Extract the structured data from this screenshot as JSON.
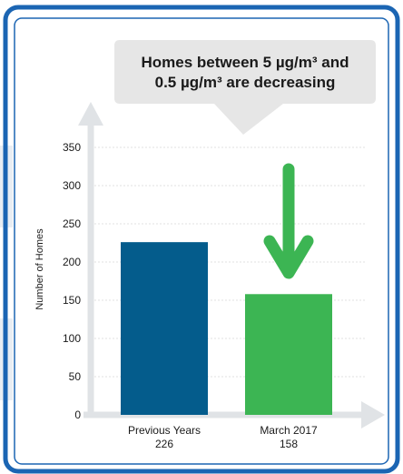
{
  "callout": {
    "line1": "Homes between 5 µg/m³ and",
    "line2": "0.5 µg/m³ are decreasing"
  },
  "colors": {
    "frame_blue": "#1b65b3",
    "bar_previous": "#045c8c",
    "bar_march": "#3cb553",
    "arrow_green": "#3cb553",
    "axis_gray": "#e0e3e6",
    "callout_gray": "#e6e6e6"
  },
  "chart_data": {
    "type": "bar",
    "ylabel": "Number of Homes",
    "ylim": [
      0,
      350
    ],
    "yticks": [
      0,
      50,
      100,
      150,
      200,
      250,
      300,
      350
    ],
    "categories": [
      "Previous Years",
      "March 2017"
    ],
    "values": [
      226,
      158
    ],
    "value_labels": [
      "226",
      "158"
    ],
    "grid": true,
    "annotation": "down-arrow above March 2017 bar"
  }
}
